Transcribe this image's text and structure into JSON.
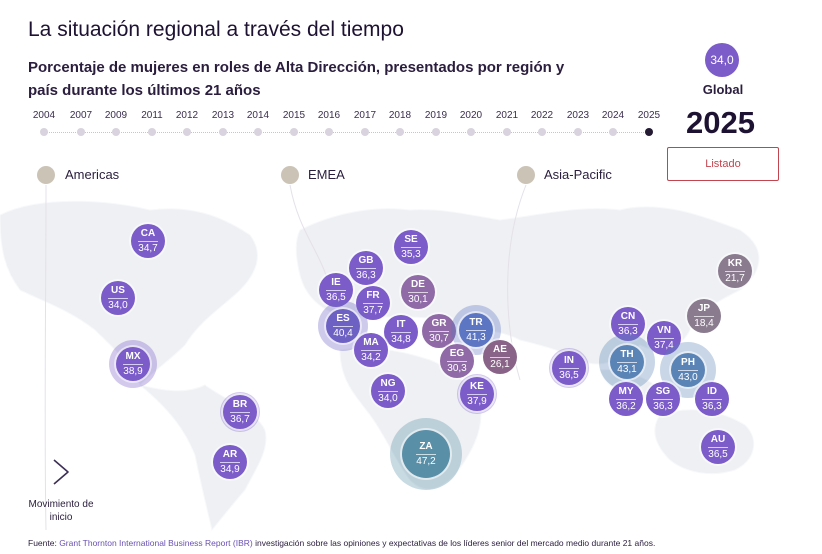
{
  "title": "La situación regional a través del tiempo",
  "subtitle": "Porcentaje de mujeres en roles de Alta Dirección, presentados por región y país durante los últimos 21 años",
  "global": {
    "value": "34,0",
    "label": "Global"
  },
  "selected_year": "2025",
  "listado_button": "Listado",
  "timeline": [
    "2004",
    "2007",
    "2009",
    "2011",
    "2012",
    "2013",
    "2014",
    "2015",
    "2016",
    "2017",
    "2018",
    "2019",
    "2020",
    "2021",
    "2022",
    "2023",
    "2024",
    "2025"
  ],
  "regions": [
    "Americas",
    "EMEA",
    "Asia-Pacific"
  ],
  "countries": [
    {
      "code": "CA",
      "value": "34,7",
      "color": "#7b5cc9"
    },
    {
      "code": "US",
      "value": "34,0",
      "color": "#7b5cc9"
    },
    {
      "code": "MX",
      "value": "38,9",
      "color": "#7b5cc9"
    },
    {
      "code": "BR",
      "value": "36,7",
      "color": "#7b5cc9"
    },
    {
      "code": "AR",
      "value": "34,9",
      "color": "#7b5cc9"
    },
    {
      "code": "SE",
      "value": "35,3",
      "color": "#7b5cc9"
    },
    {
      "code": "GB",
      "value": "36,3",
      "color": "#7b5cc9"
    },
    {
      "code": "IE",
      "value": "36,5",
      "color": "#7b5cc9"
    },
    {
      "code": "DE",
      "value": "30,1",
      "color": "#8f6aa6"
    },
    {
      "code": "FR",
      "value": "37,7",
      "color": "#7b5cc9"
    },
    {
      "code": "ES",
      "value": "40,4",
      "color": "#6d61c4"
    },
    {
      "code": "IT",
      "value": "34,8",
      "color": "#7b5cc9"
    },
    {
      "code": "GR",
      "value": "30,7",
      "color": "#8f6aa6"
    },
    {
      "code": "TR",
      "value": "41,3",
      "color": "#5d76c4"
    },
    {
      "code": "MA",
      "value": "34,2",
      "color": "#7b5cc9"
    },
    {
      "code": "EG",
      "value": "30,3",
      "color": "#8f6aa6"
    },
    {
      "code": "AE",
      "value": "26,1",
      "color": "#8a6488"
    },
    {
      "code": "NG",
      "value": "34,0",
      "color": "#7b5cc9"
    },
    {
      "code": "KE",
      "value": "37,9",
      "color": "#7b5cc9"
    },
    {
      "code": "ZA",
      "value": "47,2",
      "color": "#5a8fa8"
    },
    {
      "code": "IN",
      "value": "36,5",
      "color": "#7b5cc9"
    },
    {
      "code": "CN",
      "value": "36,3",
      "color": "#7b5cc9"
    },
    {
      "code": "VN",
      "value": "37,4",
      "color": "#7b5cc9"
    },
    {
      "code": "TH",
      "value": "43,1",
      "color": "#5b84b6"
    },
    {
      "code": "PH",
      "value": "43,0",
      "color": "#5b84b6"
    },
    {
      "code": "MY",
      "value": "36,2",
      "color": "#7b5cc9"
    },
    {
      "code": "SG",
      "value": "36,3",
      "color": "#7b5cc9"
    },
    {
      "code": "ID",
      "value": "36,3",
      "color": "#7b5cc9"
    },
    {
      "code": "AU",
      "value": "36,5",
      "color": "#7b5cc9"
    },
    {
      "code": "KR",
      "value": "21,7",
      "color": "#8a7b8f"
    },
    {
      "code": "JP",
      "value": "18,4",
      "color": "#8a7b8f"
    }
  ],
  "play_label": "Movimiento de inicio",
  "source": {
    "prefix": "Fuente: ",
    "link": "Grant Thornton International Business Report (IBR)",
    "rest": " investigación sobre las opiniones y expectativas de los líderes senior del mercado medio durante 21 años."
  }
}
